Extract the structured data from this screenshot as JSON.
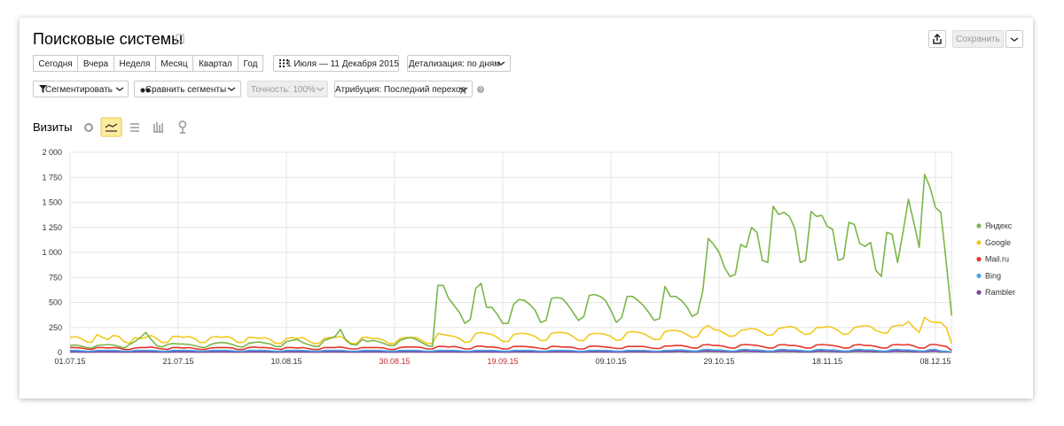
{
  "header": {
    "title": "Поисковые системы",
    "save": "Сохранить"
  },
  "period_buttons": [
    "Сегодня",
    "Вчера",
    "Неделя",
    "Месяц",
    "Квартал",
    "Год"
  ],
  "date_range": "1 Июля — 11 Декабря 2015",
  "detail": "Детализация: по дням",
  "filters": [
    "Сегментировать",
    "Сравнить сегменты",
    "Точность: 100%",
    "Атрибуция: Последний переход"
  ],
  "chart_data": {
    "type": "line",
    "title": "Визиты",
    "categories": [
      "01.07.15",
      null,
      null,
      null,
      null,
      null,
      null,
      null,
      null,
      null,
      null,
      null,
      null,
      null,
      null,
      null,
      null,
      null,
      null,
      null,
      "21.07.15",
      null,
      null,
      null,
      null,
      null,
      null,
      null,
      null,
      null,
      null,
      null,
      null,
      null,
      null,
      null,
      null,
      null,
      null,
      null,
      "10.08.15",
      null,
      null,
      null,
      null,
      null,
      null,
      null,
      null,
      null,
      null,
      null,
      null,
      null,
      null,
      null,
      null,
      null,
      null,
      null,
      "30.08.15",
      null,
      null,
      null,
      null,
      null,
      null,
      null,
      null,
      null,
      null,
      null,
      null,
      null,
      null,
      null,
      null,
      null,
      null,
      null,
      "19.09.15",
      null,
      null,
      null,
      null,
      null,
      null,
      null,
      null,
      null,
      null,
      null,
      null,
      null,
      null,
      null,
      null,
      null,
      null,
      null,
      "09.10.15",
      null,
      null,
      null,
      null,
      null,
      null,
      null,
      null,
      null,
      null,
      null,
      null,
      null,
      null,
      null,
      null,
      null,
      null,
      null,
      "29.10.15",
      null,
      null,
      null,
      null,
      null,
      null,
      null,
      null,
      null,
      null,
      null,
      null,
      null,
      null,
      null,
      null,
      null,
      null,
      null,
      "18.11.15",
      null,
      null,
      null,
      null,
      null,
      null,
      null,
      null,
      null,
      null,
      null,
      null,
      null,
      null,
      null,
      null,
      null,
      null,
      null,
      "08.12.15",
      null,
      null,
      null
    ],
    "ylim": [
      0,
      2000
    ],
    "yticks": [
      0,
      250,
      500,
      750,
      {
        "value": 1000,
        "label": "1 000"
      },
      {
        "value": 1250,
        "label": "1 250"
      },
      {
        "value": 1500,
        "label": "1 500"
      },
      {
        "value": 1750,
        "label": "1 750"
      },
      {
        "value": 2000,
        "label": "2 000"
      }
    ],
    "grid": true,
    "legend": "right",
    "series": [
      {
        "name": "Яндекс",
        "color": "#7ab648",
        "values": [
          70,
          75,
          65,
          50,
          45,
          70,
          75,
          80,
          75,
          60,
          45,
          80,
          110,
          150,
          200,
          130,
          70,
          55,
          80,
          90,
          85,
          85,
          80,
          70,
          55,
          50,
          80,
          95,
          100,
          95,
          80,
          60,
          55,
          90,
          100,
          105,
          95,
          85,
          60,
          60,
          110,
          120,
          130,
          100,
          80,
          65,
          60,
          120,
          140,
          160,
          230,
          120,
          80,
          75,
          130,
          110,
          120,
          110,
          90,
          70,
          70,
          120,
          140,
          150,
          130,
          100,
          70,
          60,
          670,
          670,
          540,
          470,
          400,
          290,
          330,
          640,
          690,
          450,
          450,
          380,
          290,
          290,
          480,
          530,
          520,
          480,
          420,
          300,
          320,
          540,
          550,
          540,
          480,
          400,
          320,
          360,
          570,
          580,
          560,
          520,
          420,
          300,
          350,
          560,
          560,
          520,
          470,
          400,
          320,
          340,
          660,
          560,
          560,
          520,
          460,
          360,
          390,
          620,
          1140,
          1080,
          1000,
          850,
          760,
          780,
          1080,
          1050,
          1250,
          1200,
          920,
          900,
          1460,
          1380,
          1400,
          1360,
          1240,
          900,
          920,
          1410,
          1360,
          1370,
          1260,
          1230,
          920,
          940,
          1300,
          1280,
          1090,
          1060,
          1100,
          820,
          760,
          1200,
          1180,
          900,
          1200,
          1530,
          1300,
          1050,
          1780,
          1650,
          1450,
          1400,
          900,
          370
        ]
      },
      {
        "name": "Google",
        "color": "#f2c81f",
        "values": [
          150,
          160,
          140,
          110,
          100,
          180,
          150,
          130,
          170,
          160,
          110,
          90,
          150,
          140,
          150,
          170,
          140,
          100,
          100,
          160,
          160,
          150,
          160,
          140,
          100,
          100,
          150,
          160,
          150,
          160,
          140,
          100,
          100,
          150,
          150,
          140,
          150,
          130,
          90,
          90,
          140,
          150,
          140,
          150,
          120,
          90,
          90,
          140,
          150,
          150,
          160,
          130,
          90,
          90,
          150,
          150,
          140,
          140,
          120,
          90,
          90,
          140,
          150,
          150,
          150,
          120,
          90,
          90,
          190,
          180,
          170,
          160,
          140,
          100,
          110,
          190,
          200,
          190,
          180,
          150,
          110,
          110,
          180,
          190,
          190,
          180,
          160,
          120,
          120,
          190,
          200,
          200,
          190,
          160,
          120,
          120,
          180,
          190,
          190,
          180,
          160,
          120,
          130,
          200,
          210,
          200,
          190,
          160,
          130,
          130,
          210,
          220,
          220,
          210,
          180,
          150,
          160,
          240,
          270,
          230,
          220,
          190,
          160,
          170,
          220,
          230,
          240,
          230,
          200,
          170,
          180,
          240,
          250,
          260,
          250,
          210,
          180,
          190,
          250,
          250,
          260,
          250,
          220,
          180,
          190,
          250,
          260,
          270,
          260,
          220,
          200,
          190,
          260,
          270,
          270,
          310,
          250,
          200,
          350,
          310,
          300,
          300,
          250,
          90
        ]
      },
      {
        "name": "Mail.ru",
        "color": "#e5352a",
        "values": [
          50,
          50,
          45,
          35,
          30,
          50,
          50,
          45,
          50,
          45,
          30,
          30,
          45,
          50,
          50,
          55,
          45,
          35,
          30,
          50,
          50,
          45,
          50,
          40,
          30,
          30,
          45,
          50,
          50,
          50,
          45,
          30,
          30,
          50,
          55,
          50,
          50,
          45,
          35,
          30,
          50,
          50,
          45,
          50,
          40,
          30,
          30,
          50,
          50,
          50,
          55,
          45,
          35,
          35,
          50,
          50,
          50,
          50,
          45,
          30,
          30,
          50,
          55,
          55,
          55,
          50,
          35,
          35,
          60,
          60,
          55,
          60,
          50,
          35,
          35,
          60,
          65,
          55,
          55,
          50,
          35,
          35,
          60,
          60,
          60,
          55,
          50,
          40,
          35,
          60,
          60,
          55,
          55,
          50,
          35,
          35,
          60,
          65,
          60,
          55,
          50,
          40,
          40,
          60,
          60,
          60,
          60,
          50,
          40,
          40,
          65,
          65,
          70,
          70,
          60,
          45,
          45,
          75,
          80,
          70,
          70,
          60,
          45,
          45,
          75,
          80,
          75,
          70,
          60,
          45,
          45,
          75,
          80,
          70,
          70,
          60,
          45,
          45,
          75,
          80,
          75,
          70,
          60,
          45,
          45,
          75,
          80,
          70,
          70,
          60,
          45,
          45,
          75,
          80,
          75,
          80,
          65,
          45,
          45,
          80,
          80,
          70,
          60,
          20
        ]
      },
      {
        "name": "Bing",
        "color": "#4aa3e6",
        "values": [
          20,
          20,
          18,
          12,
          12,
          20,
          20,
          20,
          20,
          18,
          12,
          12,
          20,
          20,
          20,
          20,
          18,
          12,
          12,
          20,
          20,
          20,
          20,
          18,
          12,
          12,
          20,
          20,
          20,
          20,
          18,
          12,
          12,
          20,
          20,
          20,
          20,
          18,
          12,
          12,
          20,
          20,
          20,
          20,
          18,
          12,
          12,
          20,
          20,
          20,
          20,
          18,
          12,
          12,
          20,
          20,
          20,
          20,
          18,
          12,
          12,
          20,
          20,
          20,
          20,
          18,
          12,
          12,
          20,
          20,
          20,
          20,
          18,
          12,
          12,
          20,
          20,
          20,
          20,
          18,
          12,
          12,
          20,
          20,
          20,
          20,
          18,
          12,
          12,
          20,
          20,
          20,
          20,
          18,
          12,
          12,
          20,
          20,
          20,
          20,
          18,
          12,
          12,
          20,
          20,
          20,
          20,
          18,
          12,
          12,
          20,
          20,
          25,
          25,
          20,
          15,
          15,
          28,
          30,
          25,
          25,
          20,
          15,
          15,
          28,
          30,
          25,
          25,
          20,
          15,
          15,
          28,
          30,
          25,
          25,
          20,
          15,
          15,
          28,
          30,
          25,
          25,
          20,
          15,
          15,
          28,
          30,
          25,
          25,
          20,
          15,
          15,
          28,
          30,
          25,
          25,
          20,
          15,
          15,
          28,
          30,
          15,
          12,
          5
        ]
      },
      {
        "name": "Rambler",
        "color": "#7b3fa6",
        "values": [
          8,
          8,
          7,
          5,
          5,
          8,
          8,
          8,
          8,
          7,
          5,
          5,
          8,
          8,
          8,
          8,
          7,
          5,
          5,
          8,
          8,
          8,
          8,
          7,
          5,
          5,
          8,
          8,
          8,
          8,
          7,
          5,
          5,
          8,
          8,
          8,
          8,
          7,
          5,
          5,
          8,
          8,
          8,
          8,
          7,
          5,
          5,
          8,
          8,
          8,
          8,
          7,
          5,
          5,
          8,
          8,
          8,
          8,
          7,
          5,
          5,
          8,
          8,
          8,
          8,
          7,
          5,
          5,
          8,
          8,
          8,
          8,
          7,
          5,
          5,
          8,
          8,
          8,
          8,
          7,
          5,
          5,
          8,
          8,
          8,
          8,
          7,
          5,
          5,
          8,
          8,
          8,
          8,
          7,
          5,
          5,
          8,
          8,
          8,
          8,
          7,
          5,
          5,
          8,
          8,
          8,
          8,
          7,
          5,
          5,
          8,
          8,
          12,
          12,
          10,
          8,
          8,
          14,
          15,
          12,
          12,
          10,
          8,
          8,
          14,
          15,
          12,
          12,
          10,
          8,
          8,
          14,
          15,
          12,
          12,
          10,
          8,
          8,
          14,
          15,
          12,
          12,
          10,
          8,
          8,
          14,
          15,
          12,
          12,
          10,
          8,
          8,
          14,
          15,
          12,
          12,
          10,
          8,
          8,
          14,
          15,
          10,
          8,
          3
        ]
      }
    ]
  }
}
